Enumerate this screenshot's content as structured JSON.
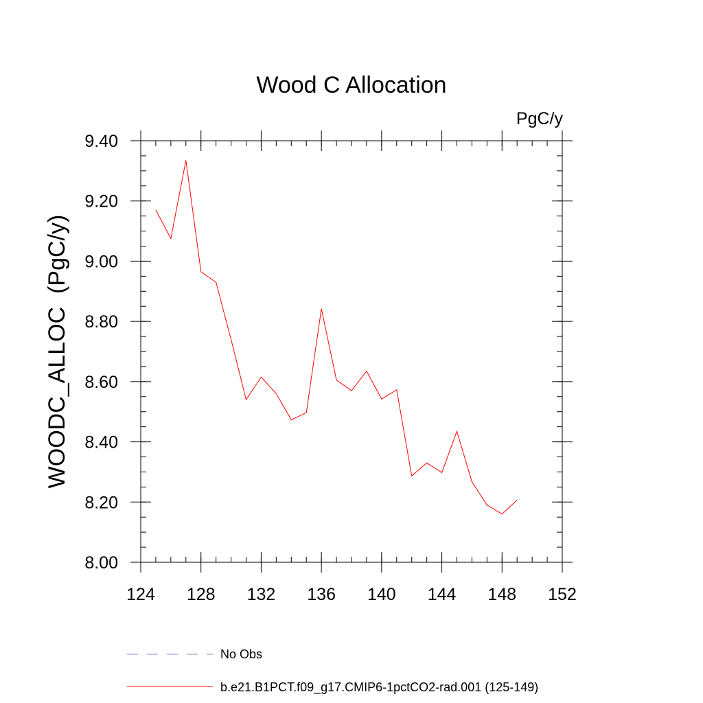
{
  "chart_data": {
    "type": "line",
    "title": "Wood C Allocation",
    "units": "PgC/y",
    "ylabel": "WOODC_ALLOC  (PgC/y)",
    "xlabel": "",
    "xlim": [
      124,
      152
    ],
    "ylim": [
      8.0,
      9.4
    ],
    "x_ticks": [
      124,
      128,
      132,
      136,
      140,
      144,
      148,
      152
    ],
    "y_ticks": [
      "8.00",
      "8.20",
      "8.40",
      "8.60",
      "8.80",
      "9.00",
      "9.20",
      "9.40"
    ],
    "x_minor_step": 1,
    "y_minor_step": 0.05,
    "grid": false,
    "legend_position": "bottom",
    "legend": [
      {
        "label": "No Obs",
        "color": "#8a8ad6",
        "dash": "dashed"
      },
      {
        "label": "b.e21.B1PCT.f09_g17.CMIP6-1pctCO2-rad.001 (125-149)",
        "color": "#ff0000",
        "dash": "solid"
      }
    ],
    "series": [
      {
        "name": "b.e21.B1PCT.f09_g17.CMIP6-1pctCO2-rad.001 (125-149)",
        "color": "#ff0000",
        "x": [
          125,
          126,
          127,
          128,
          129,
          130,
          131,
          132,
          133,
          134,
          135,
          136,
          137,
          138,
          139,
          140,
          141,
          142,
          143,
          144,
          145,
          146,
          147,
          148,
          149
        ],
        "y": [
          9.17,
          9.075,
          9.335,
          8.965,
          8.93,
          8.74,
          8.54,
          8.615,
          8.56,
          8.473,
          8.497,
          8.842,
          8.605,
          8.57,
          8.635,
          8.542,
          8.573,
          8.287,
          8.33,
          8.298,
          8.435,
          8.267,
          8.19,
          8.16,
          8.207
        ]
      }
    ]
  }
}
